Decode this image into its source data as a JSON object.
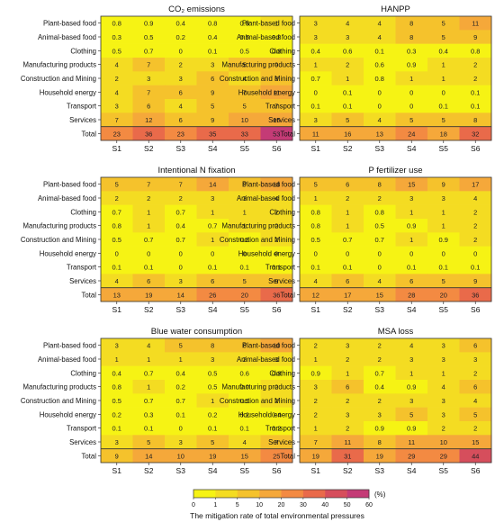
{
  "rows": [
    "Plant-based food",
    "Animal-based food",
    "Clothing",
    "Manufacturing products",
    "Construction and Mining",
    "Household energy",
    "Transport",
    "Services",
    "Total"
  ],
  "scenarios": [
    "S1",
    "S2",
    "S3",
    "S4",
    "S5",
    "S6"
  ],
  "chart_data": [
    {
      "type": "heatmap",
      "title": "CO₂ emissions",
      "values": [
        [
          "0.8",
          "0.9",
          "0.4",
          "0.8",
          "0.8",
          "1"
        ],
        [
          "0.3",
          "0.5",
          "0.2",
          "0.4",
          "0.5",
          "0.8"
        ],
        [
          "0.5",
          "0.7",
          "0",
          "0.1",
          "0.5",
          "0.8"
        ],
        [
          "4",
          "7",
          "2",
          "3",
          "5",
          "9"
        ],
        [
          "2",
          "3",
          "3",
          "6",
          "4",
          "8"
        ],
        [
          "4",
          "7",
          "6",
          "9",
          "7",
          "11"
        ],
        [
          "3",
          "6",
          "4",
          "5",
          "5",
          "7"
        ],
        [
          "7",
          "12",
          "6",
          "9",
          "10",
          "15"
        ],
        [
          "23",
          "36",
          "23",
          "35",
          "33",
          "53"
        ]
      ]
    },
    {
      "type": "heatmap",
      "title": "HANPP",
      "values": [
        [
          "3",
          "4",
          "4",
          "8",
          "5",
          "11"
        ],
        [
          "3",
          "3",
          "4",
          "8",
          "5",
          "9"
        ],
        [
          "0.4",
          "0.6",
          "0.1",
          "0.3",
          "0.4",
          "0.8"
        ],
        [
          "1",
          "2",
          "0.6",
          "0.9",
          "1",
          "2"
        ],
        [
          "0.7",
          "1",
          "0.8",
          "1",
          "1",
          "2"
        ],
        [
          "0",
          "0.1",
          "0",
          "0",
          "0",
          "0.1"
        ],
        [
          "0.1",
          "0.1",
          "0",
          "0",
          "0.1",
          "0.1"
        ],
        [
          "3",
          "5",
          "4",
          "5",
          "5",
          "8"
        ],
        [
          "11",
          "16",
          "13",
          "24",
          "18",
          "32"
        ]
      ]
    },
    {
      "type": "heatmap",
      "title": "Intentional N fixation",
      "values": [
        [
          "5",
          "7",
          "7",
          "14",
          "9",
          "18"
        ],
        [
          "2",
          "2",
          "2",
          "3",
          "3",
          "4"
        ],
        [
          "0.7",
          "1",
          "0.7",
          "1",
          "1",
          "2"
        ],
        [
          "0.8",
          "1",
          "0.4",
          "0.7",
          "1",
          "2"
        ],
        [
          "0.5",
          "0.7",
          "0.7",
          "1",
          "0.8",
          "2"
        ],
        [
          "0",
          "0",
          "0",
          "0",
          "0",
          "0"
        ],
        [
          "0.1",
          "0.1",
          "0",
          "0.1",
          "0.1",
          "0.1"
        ],
        [
          "4",
          "6",
          "3",
          "6",
          "5",
          "9"
        ],
        [
          "13",
          "19",
          "14",
          "26",
          "20",
          "36"
        ]
      ]
    },
    {
      "type": "heatmap",
      "title": "P fertilizer use",
      "values": [
        [
          "5",
          "6",
          "8",
          "15",
          "9",
          "17"
        ],
        [
          "1",
          "2",
          "2",
          "3",
          "3",
          "4"
        ],
        [
          "0.8",
          "1",
          "0.8",
          "1",
          "1",
          "2"
        ],
        [
          "0.8",
          "1",
          "0.5",
          "0.9",
          "1",
          "2"
        ],
        [
          "0.5",
          "0.7",
          "0.7",
          "1",
          "0.9",
          "2"
        ],
        [
          "0",
          "0",
          "0",
          "0",
          "0",
          "0"
        ],
        [
          "0.1",
          "0.1",
          "0",
          "0.1",
          "0.1",
          "0.1"
        ],
        [
          "4",
          "6",
          "4",
          "6",
          "5",
          "9"
        ],
        [
          "12",
          "17",
          "15",
          "28",
          "20",
          "36"
        ]
      ]
    },
    {
      "type": "heatmap",
      "title": "Blue water consumption",
      "values": [
        [
          "3",
          "4",
          "5",
          "8",
          "6",
          "10"
        ],
        [
          "1",
          "1",
          "1",
          "3",
          "2",
          "3"
        ],
        [
          "0.4",
          "0.7",
          "0.4",
          "0.5",
          "0.6",
          "0.8"
        ],
        [
          "0.8",
          "1",
          "0.2",
          "0.5",
          "0.9",
          "2"
        ],
        [
          "0.5",
          "0.7",
          "0.7",
          "1",
          "0.9",
          "2"
        ],
        [
          "0.2",
          "0.3",
          "0.1",
          "0.2",
          "0.2",
          "0.4"
        ],
        [
          "0.1",
          "0.1",
          "0",
          "0.1",
          "0.1",
          "0.2"
        ],
        [
          "3",
          "5",
          "3",
          "5",
          "4",
          "7"
        ],
        [
          "9",
          "14",
          "10",
          "19",
          "15",
          "25"
        ]
      ]
    },
    {
      "type": "heatmap",
      "title": "MSA loss",
      "values": [
        [
          "2",
          "3",
          "2",
          "4",
          "3",
          "6"
        ],
        [
          "1",
          "2",
          "2",
          "3",
          "3",
          "3"
        ],
        [
          "0.9",
          "1",
          "0.7",
          "1",
          "1",
          "2"
        ],
        [
          "3",
          "6",
          "0.4",
          "0.9",
          "4",
          "6"
        ],
        [
          "2",
          "2",
          "2",
          "3",
          "3",
          "4"
        ],
        [
          "2",
          "3",
          "3",
          "5",
          "3",
          "5"
        ],
        [
          "1",
          "2",
          "0.9",
          "0.9",
          "2",
          "2"
        ],
        [
          "7",
          "11",
          "8",
          "11",
          "10",
          "15"
        ],
        [
          "19",
          "31",
          "19",
          "29",
          "29",
          "44"
        ]
      ]
    }
  ],
  "legend": {
    "ticks": [
      "0",
      "1",
      "5",
      "10",
      "20",
      "30",
      "40",
      "50",
      "60"
    ],
    "unit": "(%)",
    "label": "The mitigation rate of total environmental pressures",
    "colors": [
      "#f6f314",
      "#f4dc22",
      "#f5c22c",
      "#f5a83a",
      "#f38a42",
      "#e96a4a",
      "#d64e5c",
      "#c43b76"
    ]
  }
}
